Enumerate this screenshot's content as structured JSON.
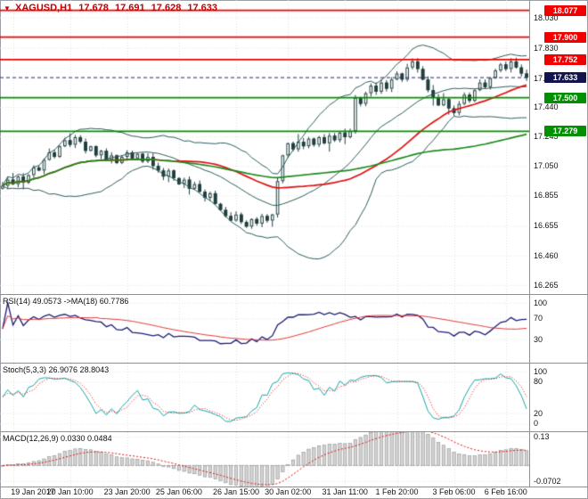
{
  "header": {
    "marker": "▼",
    "symbol": "XAGUSD,H1",
    "open": "17.678",
    "high": "17.691",
    "low": "17.628",
    "close": "17.633"
  },
  "rsi_panel": {
    "label": "RSI(14) 49.0573 ->MA(18) 60.7786",
    "ticks": [
      "100",
      "70",
      "30"
    ]
  },
  "stoch_panel": {
    "label": "Stoch(5,3,3) 26.9076 28.8043",
    "ticks": [
      "100",
      "80",
      "20",
      "0"
    ]
  },
  "macd_panel": {
    "label": "MACD(12,26,9) 0.0330 0.0484",
    "ticks": [
      "0.13",
      "-0.0702"
    ]
  },
  "chart_data": {
    "type": "candlestick",
    "title": "XAGUSD,H1",
    "symbol": "XAGUSD",
    "timeframe": "H1",
    "last_ohlc": {
      "open": 17.678,
      "high": 17.691,
      "low": 17.628,
      "close": 17.633
    },
    "y_range": [
      16.205,
      18.145
    ],
    "price_tick_labels": [
      "18.030",
      "17.830",
      "17.630",
      "17.440",
      "17.245",
      "17.050",
      "16.855",
      "16.655",
      "16.460",
      "16.265"
    ],
    "x_tick_labels": [
      "19 Jan 2017",
      "20 Jan 10:00",
      "23 Jan 20:00",
      "25 Jan 06:00",
      "26 Jan 15:00",
      "30 Jan 02:00",
      "31 Jan 11:00",
      "1 Feb 20:00",
      "3 Feb 06:00",
      "6 Feb 16:00"
    ],
    "x_tick_bars": [
      2,
      13,
      24,
      34,
      45,
      55,
      66,
      76,
      87,
      97
    ],
    "levels": [
      {
        "price": 18.077,
        "label": "18.077",
        "color": "#f20000"
      },
      {
        "price": 17.9,
        "label": "17.900",
        "color": "#f20000"
      },
      {
        "price": 17.752,
        "label": "17.752",
        "color": "#f20000"
      },
      {
        "price": 17.5,
        "label": "17.500",
        "color": "#009000"
      },
      {
        "price": 17.279,
        "label": "17.279",
        "color": "#009000"
      }
    ],
    "current_price": {
      "price": 17.633,
      "label": "17.633",
      "color": "#13134f"
    },
    "close_series": [
      16.92,
      16.96,
      16.93,
      16.98,
      16.94,
      16.99,
      17.04,
      17.02,
      17.09,
      17.14,
      17.11,
      17.18,
      17.22,
      17.19,
      17.24,
      17.21,
      17.15,
      17.18,
      17.12,
      17.15,
      17.09,
      17.12,
      17.07,
      17.11,
      17.14,
      17.1,
      17.13,
      17.08,
      17.11,
      17.05,
      17.02,
      16.98,
      17.02,
      16.97,
      16.93,
      16.96,
      16.9,
      16.93,
      16.88,
      16.84,
      16.87,
      16.8,
      16.76,
      16.72,
      16.69,
      16.73,
      16.68,
      16.65,
      16.7,
      16.67,
      16.72,
      16.69,
      16.73,
      16.95,
      17.12,
      17.2,
      17.16,
      17.21,
      17.18,
      17.23,
      17.19,
      17.24,
      17.2,
      17.25,
      17.22,
      17.27,
      17.24,
      17.28,
      17.5,
      17.46,
      17.53,
      17.58,
      17.54,
      17.6,
      17.56,
      17.62,
      17.66,
      17.62,
      17.7,
      17.74,
      17.69,
      17.62,
      17.55,
      17.5,
      17.45,
      17.49,
      17.43,
      17.4,
      17.46,
      17.52,
      17.48,
      17.55,
      17.6,
      17.57,
      17.63,
      17.68,
      17.72,
      17.69,
      17.74,
      17.7,
      17.66,
      17.633
    ],
    "indicator_values": {
      "rsi": 49.0573,
      "rsi_ma": 60.7786,
      "stoch": 26.9076,
      "stoch_signal": 28.8043,
      "macd": 0.033,
      "macd_signal": 0.0484
    }
  }
}
